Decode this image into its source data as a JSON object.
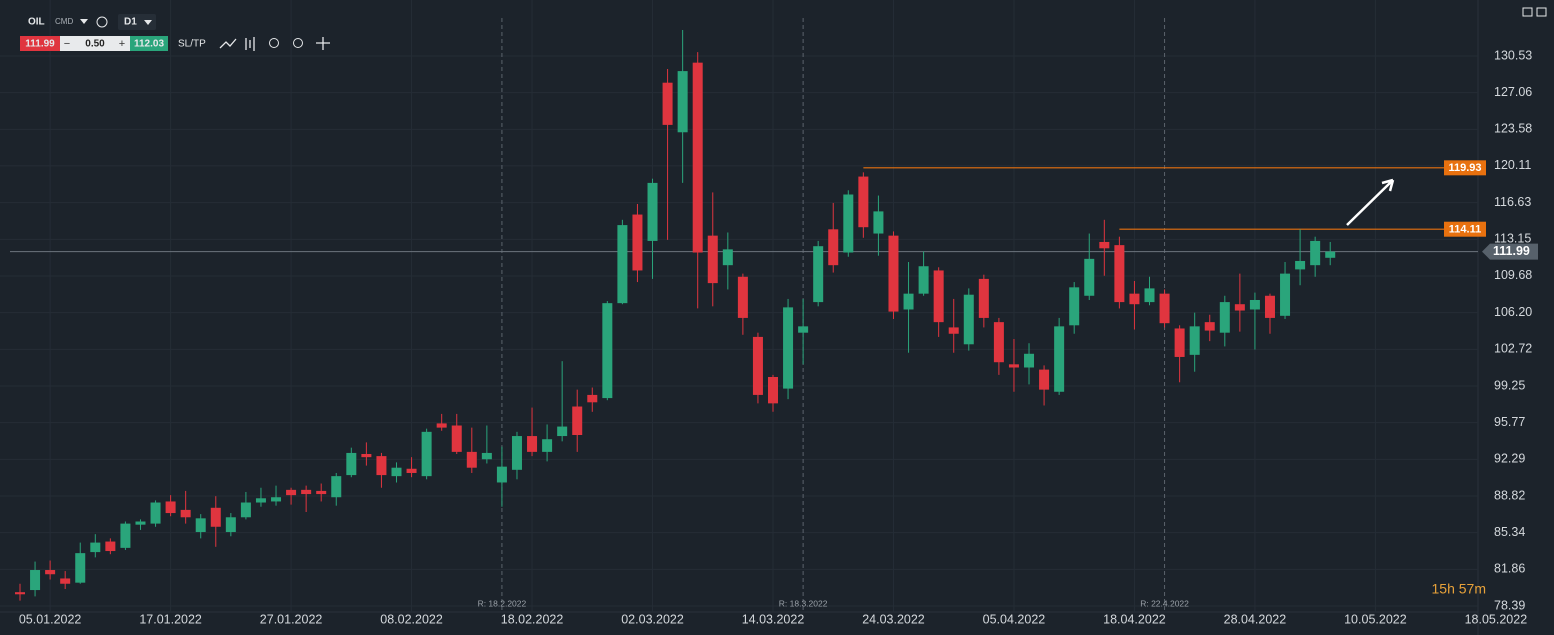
{
  "chart_data": {
    "type": "candlestick",
    "symbol": "OIL",
    "symbol_type": "CMD",
    "timeframe": "D1",
    "bid": 111.99,
    "spread": "0.50",
    "ask": 112.03,
    "sl_tp": "SL/TP",
    "last_price": 111.99,
    "timer": "15h 57m",
    "rollovers": [
      "R: 18.2.2022",
      "R: 18.3.2022",
      "R: 22.4.2022"
    ],
    "levels": [
      119.93,
      114.11
    ],
    "up_color": "#2aa57b",
    "down_color": "#e0353f",
    "level_color": "#e8710f",
    "ylim": [
      77.82,
      135.84
    ],
    "yticks": [
      130.53,
      127.06,
      123.58,
      120.11,
      116.63,
      113.15,
      109.68,
      {
        "value": 106.2,
        "label": "106.20"
      },
      102.72,
      99.25,
      95.77,
      92.29,
      88.82,
      85.34,
      81.86,
      78.39
    ],
    "grid": true,
    "categories": [
      null,
      null,
      "05.01.2022",
      null,
      null,
      null,
      null,
      null,
      null,
      null,
      "17.01.2022",
      null,
      null,
      null,
      null,
      null,
      null,
      null,
      "27.01.2022",
      null,
      null,
      null,
      null,
      null,
      null,
      null,
      "08.02.2022",
      null,
      null,
      null,
      null,
      null,
      null,
      null,
      "18.02.2022",
      null,
      null,
      null,
      null,
      null,
      null,
      null,
      "02.03.2022",
      null,
      null,
      null,
      null,
      null,
      null,
      null,
      "14.03.2022",
      null,
      null,
      null,
      null,
      null,
      null,
      null,
      "24.03.2022",
      null,
      null,
      null,
      null,
      null,
      null,
      null,
      "05.04.2022",
      null,
      null,
      null,
      null,
      null,
      null,
      null,
      "18.04.2022",
      null,
      null,
      null,
      null,
      null,
      null,
      null,
      "28.04.2022",
      null,
      null,
      null,
      null,
      null,
      null,
      null,
      "10.05.2022",
      null,
      null,
      null,
      null,
      null,
      null,
      null,
      "18.05.2022"
    ],
    "open": [
      79.7,
      79.9,
      81.8,
      81.0,
      80.6,
      83.5,
      84.5,
      83.9,
      86.1,
      86.2,
      88.3,
      87.5,
      85.4,
      87.7,
      85.4,
      86.8,
      88.2,
      88.3,
      89.4,
      89.4,
      89.3,
      88.7,
      90.8,
      92.8,
      92.6,
      90.7,
      91.4,
      90.7,
      95.7,
      95.5,
      93.0,
      92.3,
      90.1,
      91.3,
      94.5,
      93.0,
      94.5,
      97.3,
      98.4,
      98.1,
      107.1,
      115.5,
      113.0,
      128.0,
      123.3,
      129.9,
      113.5,
      110.7,
      109.6,
      103.9,
      100.1,
      99.0,
      104.3,
      107.2,
      114.1,
      111.9,
      119.1,
      113.7,
      113.5,
      106.5,
      108.0,
      110.2,
      104.8,
      103.2,
      109.4,
      105.3,
      101.3,
      101.0,
      100.8,
      98.7,
      105.0,
      107.8,
      112.9,
      112.6,
      108.0,
      107.2,
      108.0,
      104.7,
      102.2,
      105.3,
      104.3,
      107.0,
      106.5,
      107.8,
      105.9,
      110.3,
      110.7,
      111.4,
      null,
      null,
      null,
      null,
      null,
      null,
      null,
      null,
      null,
      null,
      null
    ],
    "high": [
      80.5,
      82.6,
      82.7,
      81.7,
      84.4,
      85.2,
      84.8,
      86.4,
      86.6,
      88.4,
      88.9,
      89.3,
      87.1,
      88.8,
      87.2,
      89.2,
      89.6,
      89.8,
      89.6,
      89.8,
      90.0,
      91.0,
      93.4,
      93.9,
      92.9,
      92.0,
      92.5,
      95.2,
      96.6,
      96.6,
      95.3,
      95.5,
      93.5,
      94.9,
      97.2,
      95.6,
      101.6,
      98.9,
      99.1,
      107.3,
      115.0,
      116.5,
      118.9,
      129.3,
      133.0,
      130.9,
      117.6,
      113.8,
      109.9,
      104.3,
      100.3,
      107.5,
      107.5,
      113.0,
      116.6,
      117.8,
      119.5,
      117.3,
      113.9,
      111.0,
      112.0,
      110.5,
      107.5,
      108.5,
      109.8,
      105.7,
      103.7,
      103.3,
      101.2,
      105.7,
      109.1,
      113.7,
      115.0,
      113.4,
      109.2,
      109.6,
      108.4,
      105.0,
      106.2,
      106.0,
      107.8,
      109.9,
      108.1,
      108.0,
      111.0,
      114.1,
      113.4,
      112.9,
      null,
      null,
      null,
      null,
      null,
      null,
      null,
      null,
      null,
      null,
      null
    ],
    "low": [
      78.9,
      79.3,
      80.9,
      80.0,
      80.5,
      83.0,
      83.3,
      83.7,
      85.6,
      85.9,
      86.9,
      86.2,
      84.8,
      84.0,
      85.0,
      86.6,
      87.8,
      87.9,
      88.0,
      87.3,
      88.3,
      87.9,
      90.6,
      91.7,
      89.6,
      90.1,
      90.6,
      90.4,
      95.0,
      92.8,
      91.0,
      91.9,
      87.8,
      90.4,
      92.6,
      92.1,
      94.0,
      93.0,
      96.8,
      97.9,
      107.0,
      109.1,
      109.4,
      113.1,
      118.5,
      106.6,
      106.8,
      108.4,
      104.1,
      97.6,
      96.8,
      98.0,
      101.3,
      106.8,
      110.0,
      111.5,
      113.3,
      111.6,
      105.6,
      102.4,
      107.8,
      103.9,
      102.4,
      102.6,
      104.8,
      100.3,
      98.7,
      99.4,
      97.4,
      98.4,
      104.2,
      107.4,
      109.7,
      106.6,
      104.6,
      106.9,
      104.8,
      99.6,
      100.6,
      103.5,
      103.0,
      104.4,
      102.7,
      104.2,
      105.6,
      108.8,
      109.6,
      110.7,
      null,
      null,
      null,
      null,
      null,
      null,
      null,
      null,
      null,
      null,
      null
    ],
    "close": [
      79.5,
      81.8,
      81.4,
      80.5,
      83.4,
      84.4,
      83.6,
      86.2,
      86.4,
      88.2,
      87.2,
      86.8,
      86.7,
      85.9,
      86.8,
      88.2,
      88.6,
      88.7,
      88.9,
      89.0,
      89.0,
      90.7,
      92.9,
      92.5,
      90.8,
      91.5,
      91.0,
      94.9,
      95.3,
      93.0,
      91.5,
      92.9,
      91.6,
      94.5,
      93.0,
      94.2,
      95.4,
      94.6,
      97.7,
      107.1,
      114.5,
      110.2,
      118.5,
      124.0,
      129.1,
      111.9,
      109.0,
      112.2,
      105.7,
      98.4,
      97.6,
      106.7,
      104.9,
      112.5,
      110.7,
      117.4,
      114.3,
      115.8,
      106.3,
      108.0,
      110.6,
      105.3,
      104.2,
      107.9,
      105.7,
      101.5,
      101.0,
      102.3,
      98.9,
      104.9,
      108.6,
      111.3,
      112.3,
      107.2,
      107.0,
      108.5,
      105.2,
      102.0,
      104.9,
      104.5,
      107.2,
      106.4,
      107.4,
      105.7,
      109.9,
      111.1,
      113.0,
      111.99,
      null,
      null,
      null,
      null,
      null,
      null,
      null,
      null,
      null,
      null,
      null
    ]
  }
}
